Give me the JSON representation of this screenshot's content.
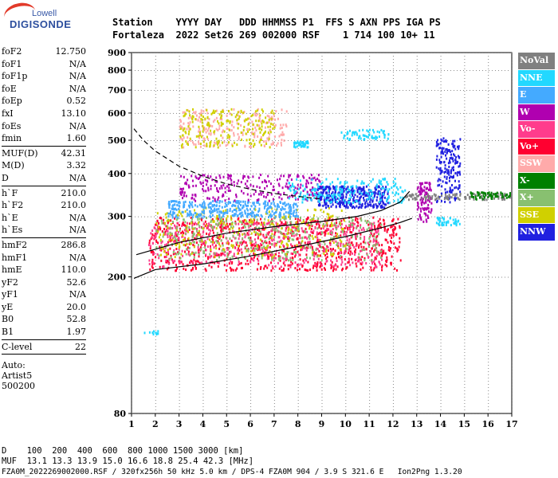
{
  "logo": {
    "top": "Lowell",
    "main": "DIGISONDE"
  },
  "header": {
    "line1": "Station    YYYY DAY   DDD HHMMSS P1  FFS S AXN PPS IGA PS",
    "line2": "Fortaleza  2022 Set26 269 002000 RSF    1 714 100 10+ 11"
  },
  "params_groups": [
    [
      {
        "k": "foF2",
        "v": "12.750"
      },
      {
        "k": "foF1",
        "v": "N/A"
      },
      {
        "k": "foF1p",
        "v": "N/A"
      },
      {
        "k": "foE",
        "v": "N/A"
      },
      {
        "k": "foEp",
        "v": "0.52"
      },
      {
        "k": "fxI",
        "v": "13.10"
      },
      {
        "k": "foEs",
        "v": "N/A"
      },
      {
        "k": "fmin",
        "v": "1.60"
      }
    ],
    [
      {
        "k": "MUF(D)",
        "v": "42.31"
      },
      {
        "k": "M(D)",
        "v": "3.32"
      },
      {
        "k": "D",
        "v": "N/A"
      }
    ],
    [
      {
        "k": "h`F",
        "v": "210.0"
      },
      {
        "k": "h`F2",
        "v": "210.0"
      },
      {
        "k": "h`E",
        "v": "N/A"
      },
      {
        "k": "h`Es",
        "v": "N/A"
      }
    ],
    [
      {
        "k": "hmF2",
        "v": "286.8"
      },
      {
        "k": "hmF1",
        "v": "N/A"
      },
      {
        "k": "hmE",
        "v": "110.0"
      },
      {
        "k": "yF2",
        "v": "52.6"
      },
      {
        "k": "yF1",
        "v": "N/A"
      },
      {
        "k": "yE",
        "v": "20.0"
      },
      {
        "k": "B0",
        "v": "52.8"
      },
      {
        "k": "B1",
        "v": "1.97"
      }
    ],
    [
      {
        "k": "C-level",
        "v": "22"
      }
    ]
  ],
  "auto": {
    "line1": "Auto:",
    "line2": "Artist5",
    "line3": "500200"
  },
  "legend": [
    {
      "label": "NoVal",
      "color": "#808080"
    },
    {
      "label": "NNE",
      "color": "#22d8ff"
    },
    {
      "label": "E",
      "color": "#44aaff"
    },
    {
      "label": "W",
      "color": "#b000b0"
    },
    {
      "label": "Vo-",
      "color": "#ff3c8c"
    },
    {
      "label": "Vo+",
      "color": "#ff0030"
    },
    {
      "label": "SSW",
      "color": "#ffaaaa"
    },
    {
      "label": "X-",
      "color": "#008000"
    },
    {
      "label": "X+",
      "color": "#88c070"
    },
    {
      "label": "SSE",
      "color": "#d0d000"
    },
    {
      "label": "NNW",
      "color": "#2020e0"
    }
  ],
  "footer": {
    "line1": "D    100  200  400  600  800 1000 1500 3000 [km]",
    "line2": "MUF  13.1 13.3 13.9 15.0 16.6 18.8 25.4 42.3 [MHz]",
    "line3": "FZA0M_2022269002000.RSF / 320fx256h 50 kHz 5.0 km / DPS-4 FZA0M 904 / 3.9 S 321.6 E   Ion2Png 1.3.20"
  },
  "chart_data": {
    "type": "scatter",
    "xlim": [
      1,
      17
    ],
    "ylim": [
      80,
      900
    ],
    "x_ticks": [
      1,
      2,
      3,
      4,
      5,
      6,
      7,
      8,
      9,
      10,
      11,
      12,
      13,
      14,
      15,
      16,
      17
    ],
    "y_ticks": [
      80,
      200,
      300,
      400,
      500,
      600,
      700,
      800,
      900
    ],
    "grid": true,
    "clusters": [
      {
        "name": "Vo+",
        "color": "#ff0030",
        "x": [
          1.7,
          12.3
        ],
        "y": [
          210,
          300
        ],
        "n": 900
      },
      {
        "name": "Vo-",
        "color": "#ff3c8c",
        "x": [
          1.7,
          11.5
        ],
        "y": [
          215,
          290
        ],
        "n": 500
      },
      {
        "name": "X+",
        "color": "#88c070",
        "x": [
          2.0,
          11.5
        ],
        "y": [
          225,
          300
        ],
        "n": 350
      },
      {
        "name": "SSE",
        "color": "#d0d000",
        "x": [
          2.0,
          10.0
        ],
        "y": [
          230,
          320
        ],
        "n": 250
      },
      {
        "name": "SSW",
        "color": "#ffaaaa",
        "x": [
          3.0,
          7.5
        ],
        "y": [
          480,
          620
        ],
        "n": 220
      },
      {
        "name": "SSE",
        "color": "#d0d000",
        "x": [
          3.0,
          7.0
        ],
        "y": [
          480,
          620
        ],
        "n": 200
      },
      {
        "name": "E",
        "color": "#44aaff",
        "x": [
          2.5,
          8.0
        ],
        "y": [
          300,
          335
        ],
        "n": 350
      },
      {
        "name": "W",
        "color": "#b000b0",
        "x": [
          3.0,
          9.0
        ],
        "y": [
          335,
          400
        ],
        "n": 250
      },
      {
        "name": "NNW",
        "color": "#2020e0",
        "x": [
          8.8,
          11.8
        ],
        "y": [
          320,
          370
        ],
        "n": 350
      },
      {
        "name": "NNE",
        "color": "#22d8ff",
        "x": [
          7.5,
          12.5
        ],
        "y": [
          330,
          390
        ],
        "n": 200
      },
      {
        "name": "NNW",
        "color": "#2020e0",
        "x": [
          13.8,
          14.8
        ],
        "y": [
          330,
          510
        ],
        "n": 180
      },
      {
        "name": "W",
        "color": "#b000b0",
        "x": [
          13.0,
          13.6
        ],
        "y": [
          290,
          380
        ],
        "n": 100
      },
      {
        "name": "NoVal",
        "color": "#808080",
        "x": [
          12.5,
          17.0
        ],
        "y": [
          338,
          352
        ],
        "n": 120
      },
      {
        "name": "X-",
        "color": "#008000",
        "x": [
          15.2,
          17.0
        ],
        "y": [
          338,
          355
        ],
        "n": 60
      },
      {
        "name": "NNE",
        "color": "#22d8ff",
        "x": [
          9.8,
          11.8
        ],
        "y": [
          505,
          540
        ],
        "n": 60
      },
      {
        "name": "NNE",
        "color": "#22d8ff",
        "x": [
          7.8,
          8.4
        ],
        "y": [
          480,
          500
        ],
        "n": 40
      },
      {
        "name": "NNE",
        "color": "#22d8ff",
        "x": [
          1.4,
          2.1
        ],
        "y": [
          137,
          140
        ],
        "n": 10
      },
      {
        "name": "NNE",
        "color": "#22d8ff",
        "x": [
          13.8,
          14.8
        ],
        "y": [
          285,
          300
        ],
        "n": 40
      }
    ],
    "curves": [
      {
        "style": "dashed",
        "color": "#000000",
        "points": [
          [
            1.1,
            540
          ],
          [
            1.5,
            500
          ],
          [
            2.0,
            465
          ],
          [
            3.0,
            420
          ],
          [
            4.0,
            393
          ],
          [
            5.0,
            373
          ],
          [
            6.0,
            360
          ],
          [
            7.0,
            350
          ],
          [
            8.0,
            343
          ],
          [
            9.0,
            337
          ]
        ]
      },
      {
        "style": "solid",
        "color": "#000000",
        "points": [
          [
            1.1,
            198
          ],
          [
            2.0,
            210
          ],
          [
            4.0,
            218
          ],
          [
            6.0,
            230
          ],
          [
            8.0,
            245
          ],
          [
            10.0,
            262
          ],
          [
            11.5,
            278
          ],
          [
            12.3,
            288
          ],
          [
            12.8,
            296
          ]
        ]
      },
      {
        "style": "solid",
        "color": "#000000",
        "points": [
          [
            1.2,
            232
          ],
          [
            3.0,
            252
          ],
          [
            5.0,
            268
          ],
          [
            7.0,
            280
          ],
          [
            9.0,
            290
          ],
          [
            10.5,
            300
          ],
          [
            11.5,
            312
          ],
          [
            12.3,
            330
          ],
          [
            12.7,
            355
          ]
        ]
      }
    ]
  }
}
